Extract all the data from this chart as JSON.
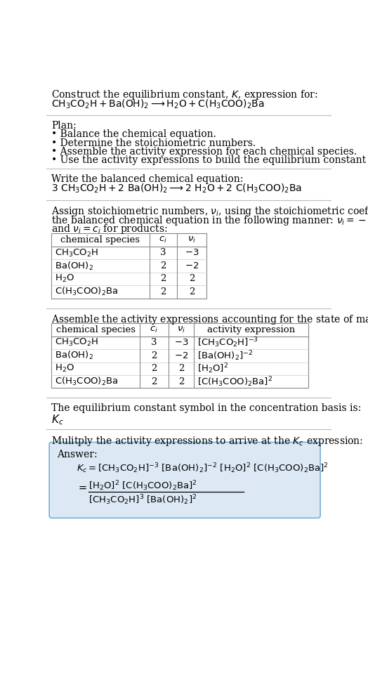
{
  "bg_color": "#ffffff",
  "text_color": "#000000",
  "section_line_color": "#bbbbbb",
  "answer_box_color": "#dce9f5",
  "answer_box_edge": "#7bafd4",
  "title_text": "Construct the equilibrium constant, $K$, expression for:",
  "plan_header": "Plan:",
  "plan_items": [
    "• Balance the chemical equation.",
    "• Determine the stoichiometric numbers.",
    "• Assemble the activity expression for each chemical species.",
    "• Use the activity expressions to build the equilibrium constant expression."
  ],
  "balanced_header": "Write the balanced chemical equation:",
  "stoich_intro": "Assign stoichiometric numbers, $\\nu_i$, using the stoichiometric coefficients, $c_i$, from\nthe balanced chemical equation in the following manner: $\\nu_i = -c_i$ for reactants\nand $\\nu_i = c_i$ for products:",
  "table1_headers": [
    "chemical species",
    "$c_i$",
    "$\\nu_i$"
  ],
  "table1_rows": [
    [
      "$\\mathrm{CH_3CO_2H}$",
      "3",
      "$-3$"
    ],
    [
      "$\\mathrm{Ba(OH)_2}$",
      "2",
      "$-2$"
    ],
    [
      "$\\mathrm{H_2O}$",
      "2",
      "2"
    ],
    [
      "$\\mathrm{C(H_3COO)_2Ba}$",
      "2",
      "2"
    ]
  ],
  "activity_header": "Assemble the activity expressions accounting for the state of matter and $\\nu_i$:",
  "table2_headers": [
    "chemical species",
    "$c_i$",
    "$\\nu_i$",
    "activity expression"
  ],
  "table2_rows": [
    [
      "$\\mathrm{CH_3CO_2H}$",
      "3",
      "$-3$",
      "$[\\mathrm{CH_3CO_2H}]^{-3}$"
    ],
    [
      "$\\mathrm{Ba(OH)_2}$",
      "2",
      "$-2$",
      "$[\\mathrm{Ba(OH)_2}]^{-2}$"
    ],
    [
      "$\\mathrm{H_2O}$",
      "2",
      "2",
      "$[\\mathrm{H_2O}]^{2}$"
    ],
    [
      "$\\mathrm{C(H_3COO)_2Ba}$",
      "2",
      "2",
      "$[\\mathrm{C(H_3COO)_2Ba}]^{2}$"
    ]
  ],
  "kc_header": "The equilibrium constant symbol in the concentration basis is:",
  "kc_symbol": "$K_c$",
  "multiply_header": "Mulitply the activity expressions to arrive at the $K_c$ expression:",
  "answer_label": "Answer:"
}
